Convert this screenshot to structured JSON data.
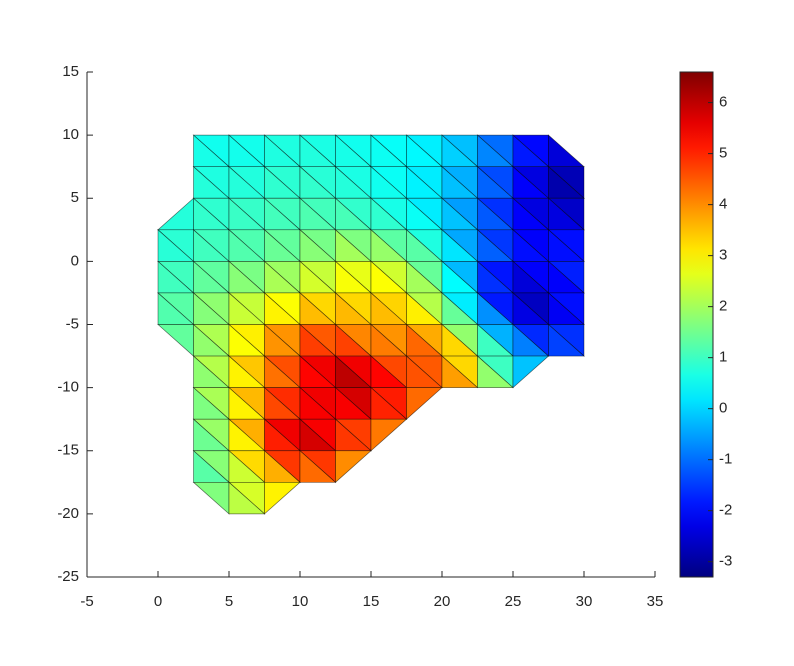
{
  "chart_data": {
    "type": "trisurf",
    "x": [
      0,
      2.5,
      5,
      7.5,
      10,
      12.5,
      15,
      17.5,
      20,
      22.5,
      25,
      27.5,
      30
    ],
    "y": [
      10,
      7.5,
      5,
      2.5,
      0,
      -2.5,
      -5,
      -7.5,
      -10,
      -12.5,
      -15,
      -17.5,
      -20
    ],
    "values": [
      [
        null,
        0.6,
        0.5,
        0.6,
        0.7,
        0.6,
        0.5,
        0.4,
        0.2,
        -0.3,
        -1.2,
        -2,
        null
      ],
      [
        null,
        0.7,
        0.6,
        0.7,
        0.8,
        0.7,
        0.6,
        0.5,
        0.2,
        -0.5,
        -1.5,
        -2.8,
        -2.5
      ],
      [
        null,
        0.8,
        0.8,
        0.9,
        1,
        0.9,
        0.7,
        0.4,
        0,
        -0.8,
        -2,
        -2.8,
        -3
      ],
      [
        0.6,
        0.9,
        1,
        1.1,
        1.2,
        1.3,
        1.1,
        0.8,
        0.3,
        -0.8,
        -2,
        -2.3,
        -2
      ],
      [
        0.8,
        1,
        1.2,
        1.4,
        1.8,
        2.2,
        2.5,
        2,
        1,
        -0.8,
        -1.8,
        -2,
        -1.5
      ],
      [
        1,
        1.3,
        1.8,
        2.2,
        2.6,
        3,
        3.3,
        2.8,
        1.2,
        -1,
        -3,
        -2.5,
        -1.8
      ],
      [
        1.1,
        1.5,
        2.3,
        3,
        3.8,
        4.2,
        3.5,
        3.8,
        2.5,
        0.5,
        -1.5,
        -2.5,
        -1.5
      ],
      [
        null,
        1.5,
        2.5,
        3.8,
        5,
        5.5,
        4.5,
        4.5,
        4.8,
        2.5,
        0,
        -1,
        -0.8
      ],
      [
        null,
        1.4,
        2.5,
        4,
        5,
        6,
        6.5,
        5,
        4.2,
        2.5,
        0.5,
        null,
        null
      ],
      [
        null,
        1.2,
        2.3,
        4.2,
        5.8,
        5.5,
        4.8,
        3.8,
        null,
        null,
        null,
        null,
        null
      ],
      [
        null,
        1,
        2.2,
        4.5,
        6.5,
        5,
        4,
        null,
        null,
        null,
        null,
        null,
        null
      ],
      [
        null,
        0.8,
        2,
        3,
        3.5,
        3,
        null,
        null,
        null,
        null,
        null,
        null,
        null
      ],
      [
        null,
        null,
        2.2,
        2.5,
        null,
        null,
        null,
        null,
        null,
        null,
        null,
        null,
        null
      ]
    ],
    "xlim": [
      -5,
      35
    ],
    "xticks": [
      -5,
      0,
      5,
      10,
      15,
      20,
      25,
      30,
      35
    ],
    "ylim": [
      -25,
      15
    ],
    "yticks": [
      -25,
      -20,
      -15,
      -10,
      -5,
      0,
      5,
      10,
      15
    ],
    "clim": [
      -3.3,
      6.6
    ],
    "cticks": [
      -3,
      -2,
      -1,
      0,
      1,
      2,
      3,
      4,
      5,
      6
    ],
    "colormap": "jet",
    "edge_color": "#000000"
  }
}
